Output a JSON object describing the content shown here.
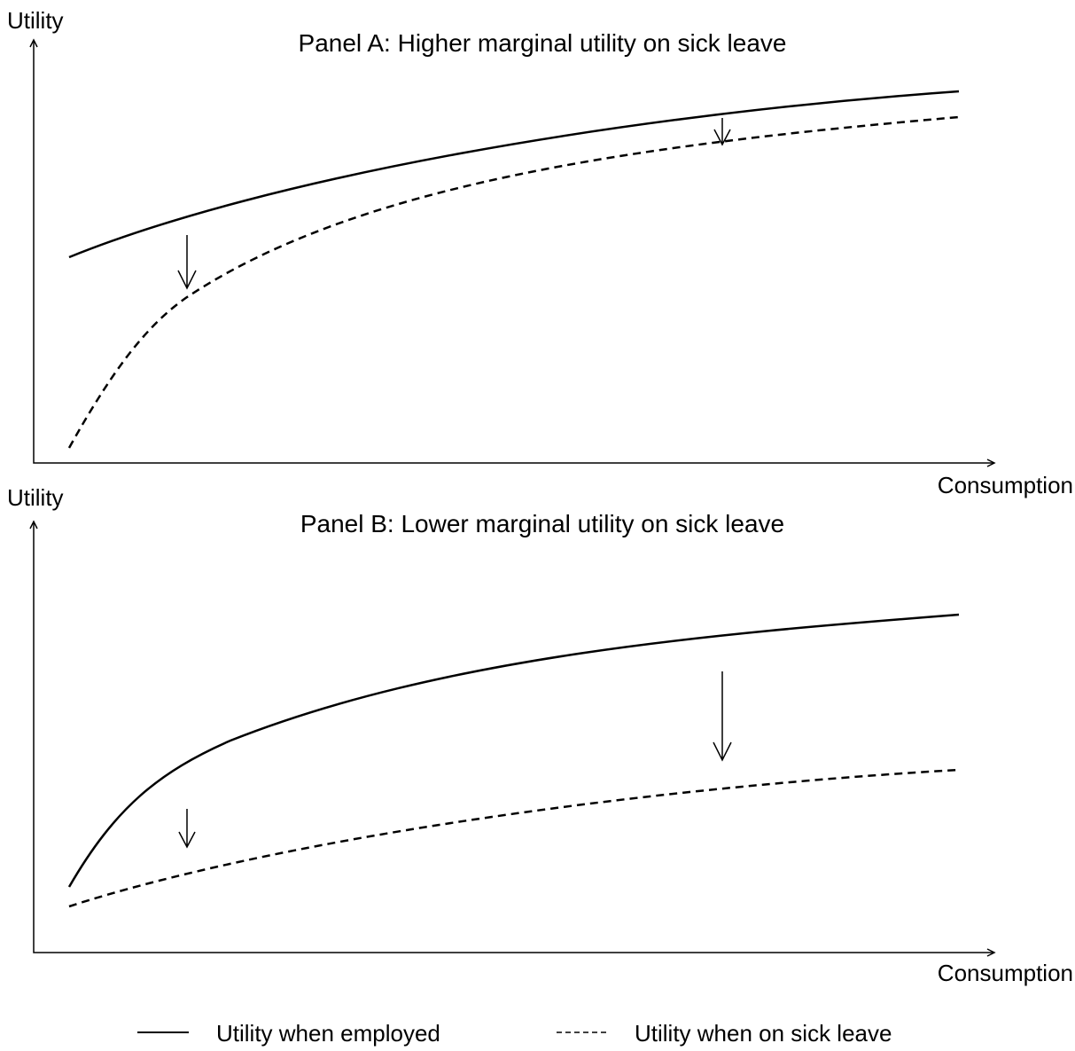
{
  "panels": [
    {
      "title": "Panel A: Higher marginal utility on sick leave",
      "y_axis_label": "Utility",
      "x_axis_label": "Consumption"
    },
    {
      "title": "Panel B: Lower marginal utility on sick leave",
      "y_axis_label": "Utility",
      "x_axis_label": "Consumption"
    }
  ],
  "legend": [
    "Utility when employed",
    "Utility when on sick leave"
  ]
}
